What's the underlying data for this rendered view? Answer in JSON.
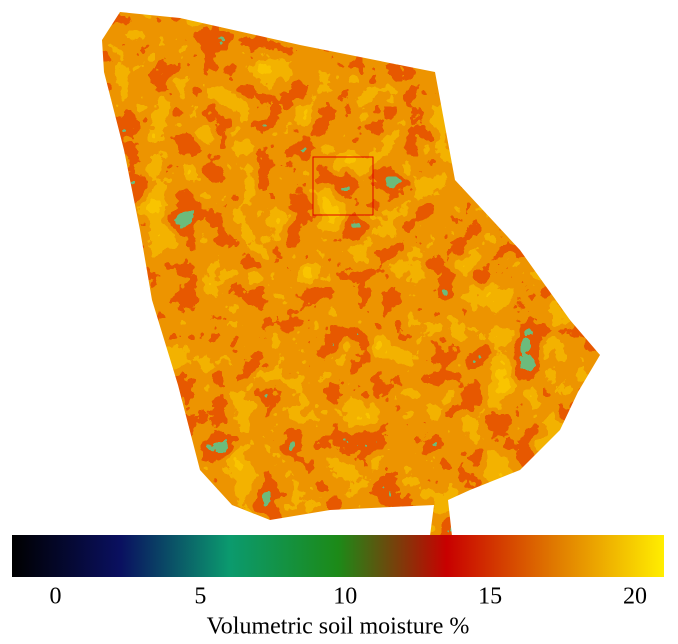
{
  "colorbar": {
    "label": "Volumetric soil moisture %",
    "lim": [
      -1.5,
      21
    ],
    "ticks": [
      0,
      5,
      10,
      15,
      20
    ],
    "colors": [
      "#000000",
      "#0a1060",
      "#0b9a6e",
      "#1c8a18",
      "#c80000",
      "#e07a00",
      "#ffee00"
    ]
  }
}
